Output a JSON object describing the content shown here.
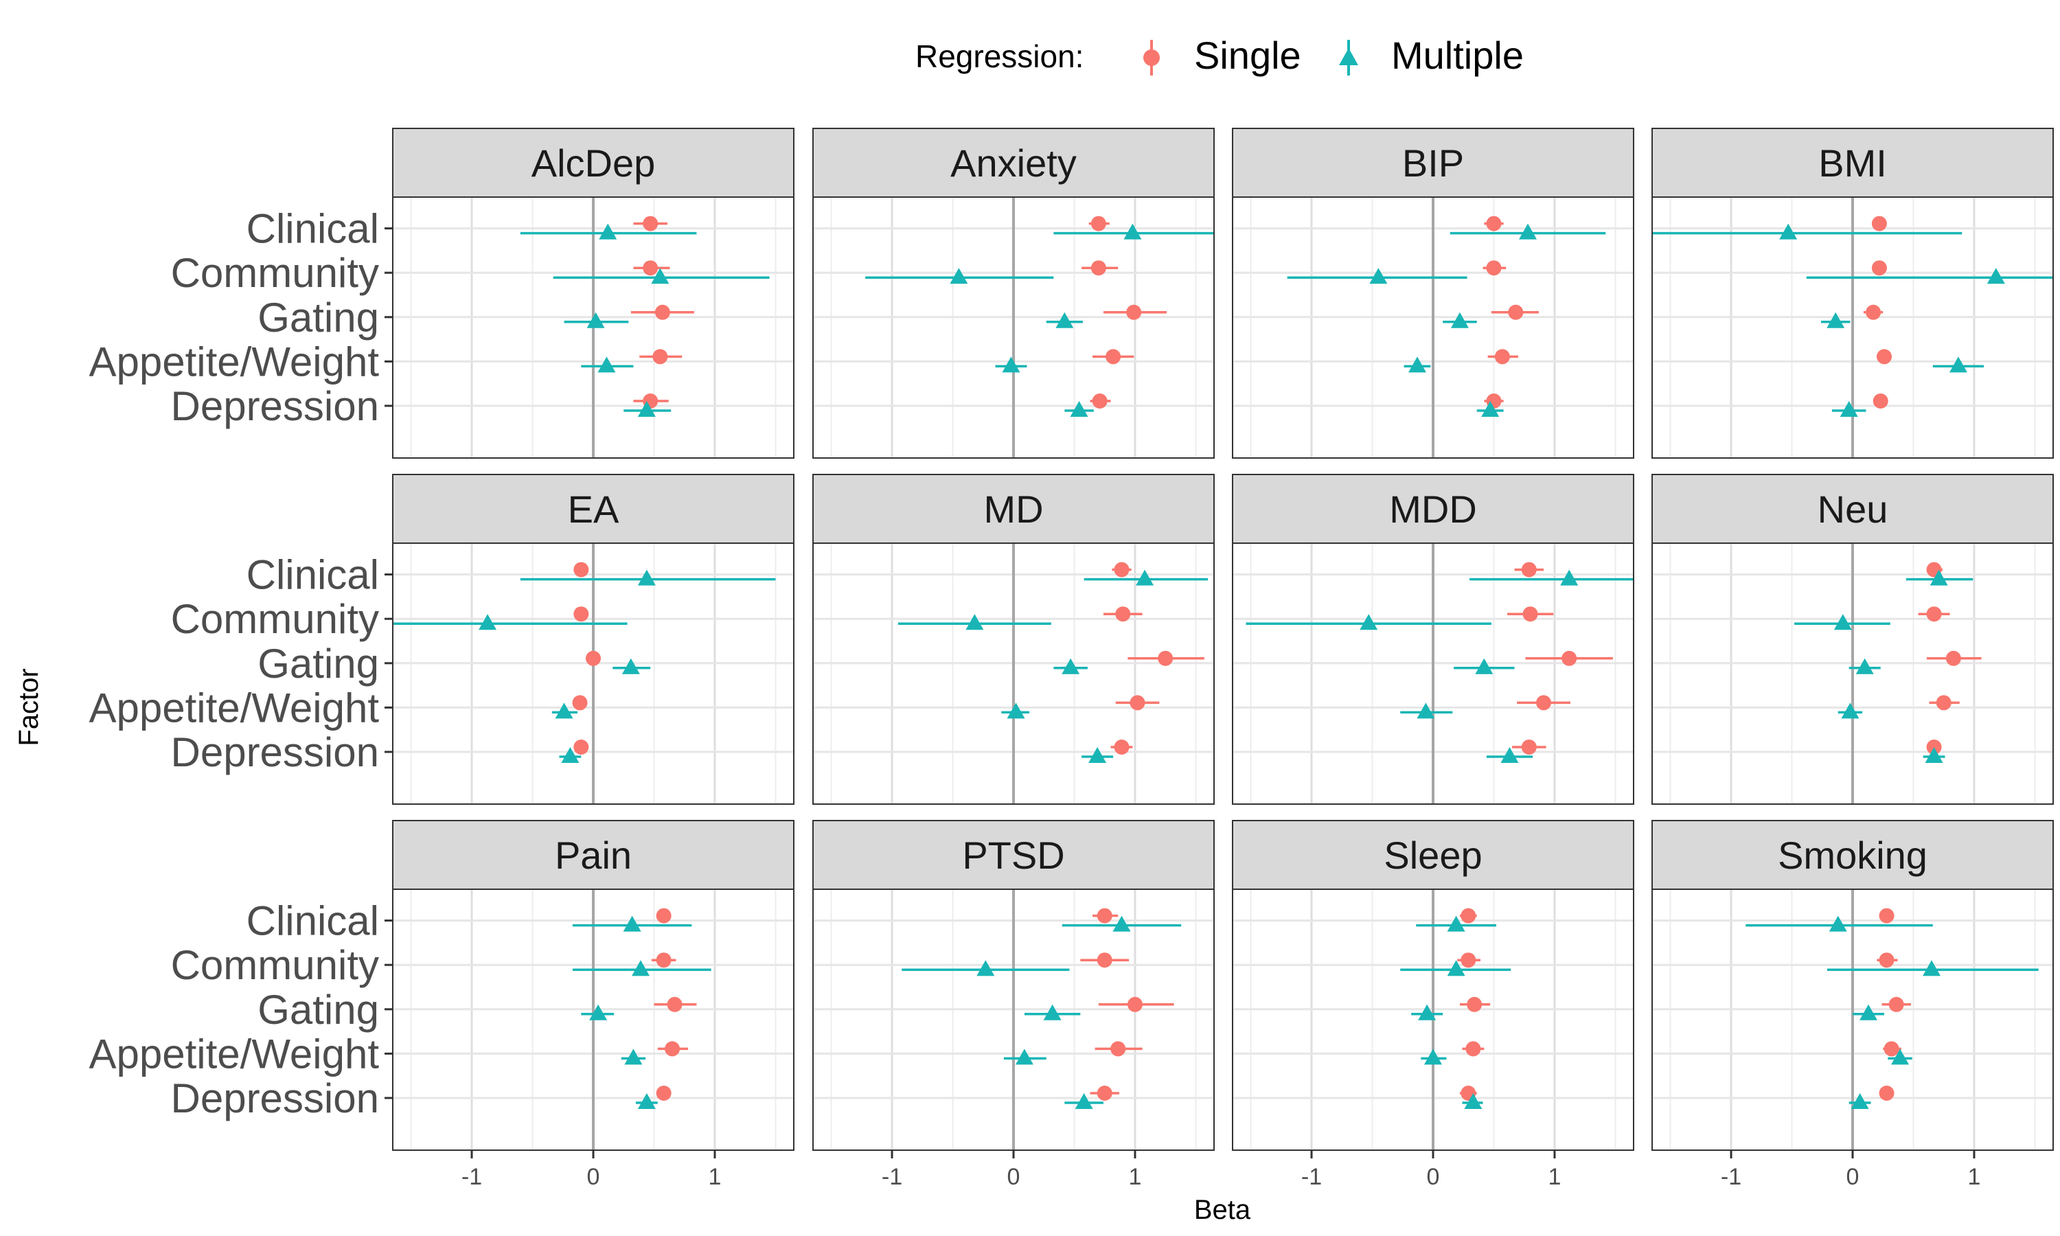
{
  "chart_data": {
    "type": "scatter",
    "subtype": "faceted-forest-plot",
    "xlabel": "Beta",
    "ylabel": "Factor",
    "xlim": [
      -1.65,
      1.65
    ],
    "xticks": [
      -1,
      0,
      1
    ],
    "xtick_labels": [
      "-1",
      "0",
      "1"
    ],
    "grid": true,
    "legend": {
      "title": "Regression:",
      "placement": "top",
      "entries": [
        {
          "name": "Single",
          "shape": "circle",
          "color": "#F8766D"
        },
        {
          "name": "Multiple",
          "shape": "triangle",
          "color": "#19B5B5"
        }
      ]
    },
    "factors": [
      "Clinical",
      "Community",
      "Gating",
      "Appetite/Weight",
      "Depression"
    ],
    "panels": [
      {
        "title": "AlcDep",
        "single": [
          {
            "beta": 0.47,
            "lo": 0.33,
            "hi": 0.61
          },
          {
            "beta": 0.47,
            "lo": 0.33,
            "hi": 0.63
          },
          {
            "beta": 0.57,
            "lo": 0.31,
            "hi": 0.83
          },
          {
            "beta": 0.55,
            "lo": 0.38,
            "hi": 0.73
          },
          {
            "beta": 0.47,
            "lo": 0.33,
            "hi": 0.62
          }
        ],
        "multiple": [
          {
            "beta": 0.12,
            "lo": -0.6,
            "hi": 0.85
          },
          {
            "beta": 0.55,
            "lo": -0.33,
            "hi": 1.45
          },
          {
            "beta": 0.02,
            "lo": -0.24,
            "hi": 0.29
          },
          {
            "beta": 0.11,
            "lo": -0.1,
            "hi": 0.33
          },
          {
            "beta": 0.44,
            "lo": 0.25,
            "hi": 0.64
          }
        ]
      },
      {
        "title": "Anxiety",
        "single": [
          {
            "beta": 0.7,
            "lo": 0.62,
            "hi": 0.79
          },
          {
            "beta": 0.7,
            "lo": 0.56,
            "hi": 0.86
          },
          {
            "beta": 0.99,
            "lo": 0.74,
            "hi": 1.26
          },
          {
            "beta": 0.82,
            "lo": 0.65,
            "hi": 0.99
          },
          {
            "beta": 0.71,
            "lo": 0.63,
            "hi": 0.8
          }
        ],
        "multiple": [
          {
            "beta": 0.98,
            "lo": 0.33,
            "hi": 1.65
          },
          {
            "beta": -0.45,
            "lo": -1.22,
            "hi": 0.33
          },
          {
            "beta": 0.42,
            "lo": 0.27,
            "hi": 0.57
          },
          {
            "beta": -0.02,
            "lo": -0.15,
            "hi": 0.11
          },
          {
            "beta": 0.54,
            "lo": 0.42,
            "hi": 0.66
          }
        ]
      },
      {
        "title": "BIP",
        "single": [
          {
            "beta": 0.5,
            "lo": 0.42,
            "hi": 0.58
          },
          {
            "beta": 0.5,
            "lo": 0.41,
            "hi": 0.6
          },
          {
            "beta": 0.68,
            "lo": 0.48,
            "hi": 0.87
          },
          {
            "beta": 0.57,
            "lo": 0.45,
            "hi": 0.7
          },
          {
            "beta": 0.5,
            "lo": 0.42,
            "hi": 0.58
          }
        ],
        "multiple": [
          {
            "beta": 0.78,
            "lo": 0.14,
            "hi": 1.42
          },
          {
            "beta": -0.45,
            "lo": -1.2,
            "hi": 0.28
          },
          {
            "beta": 0.22,
            "lo": 0.08,
            "hi": 0.36
          },
          {
            "beta": -0.13,
            "lo": -0.24,
            "hi": -0.02
          },
          {
            "beta": 0.47,
            "lo": 0.36,
            "hi": 0.58
          }
        ]
      },
      {
        "title": "BMI",
        "single": [
          {
            "beta": 0.22,
            "lo": 0.17,
            "hi": 0.27
          },
          {
            "beta": 0.22,
            "lo": 0.17,
            "hi": 0.27
          },
          {
            "beta": 0.17,
            "lo": 0.09,
            "hi": 0.25
          },
          {
            "beta": 0.26,
            "lo": 0.2,
            "hi": 0.32
          },
          {
            "beta": 0.23,
            "lo": 0.18,
            "hi": 0.28
          }
        ],
        "multiple": [
          {
            "beta": -0.53,
            "lo": -1.65,
            "hi": 0.9
          },
          {
            "beta": 1.18,
            "lo": -0.38,
            "hi": 1.65
          },
          {
            "beta": -0.14,
            "lo": -0.26,
            "hi": -0.02
          },
          {
            "beta": 0.87,
            "lo": 0.66,
            "hi": 1.08
          },
          {
            "beta": -0.03,
            "lo": -0.17,
            "hi": 0.11
          }
        ]
      },
      {
        "title": "EA",
        "single": [
          {
            "beta": -0.1,
            "lo": -0.15,
            "hi": -0.05
          },
          {
            "beta": -0.1,
            "lo": -0.15,
            "hi": -0.05
          },
          {
            "beta": 0.0,
            "lo": -0.06,
            "hi": 0.06
          },
          {
            "beta": -0.11,
            "lo": -0.16,
            "hi": -0.06
          },
          {
            "beta": -0.1,
            "lo": -0.15,
            "hi": -0.05
          }
        ],
        "multiple": [
          {
            "beta": 0.44,
            "lo": -0.6,
            "hi": 1.5
          },
          {
            "beta": -0.87,
            "lo": -1.65,
            "hi": 0.28
          },
          {
            "beta": 0.31,
            "lo": 0.16,
            "hi": 0.47
          },
          {
            "beta": -0.24,
            "lo": -0.34,
            "hi": -0.13
          },
          {
            "beta": -0.19,
            "lo": -0.28,
            "hi": -0.1
          }
        ]
      },
      {
        "title": "MD",
        "single": [
          {
            "beta": 0.89,
            "lo": 0.81,
            "hi": 0.97
          },
          {
            "beta": 0.9,
            "lo": 0.74,
            "hi": 1.06
          },
          {
            "beta": 1.25,
            "lo": 0.94,
            "hi": 1.57
          },
          {
            "beta": 1.02,
            "lo": 0.84,
            "hi": 1.2
          },
          {
            "beta": 0.89,
            "lo": 0.8,
            "hi": 0.98
          }
        ],
        "multiple": [
          {
            "beta": 1.08,
            "lo": 0.58,
            "hi": 1.6
          },
          {
            "beta": -0.32,
            "lo": -0.95,
            "hi": 0.31
          },
          {
            "beta": 0.47,
            "lo": 0.33,
            "hi": 0.61
          },
          {
            "beta": 0.02,
            "lo": -0.1,
            "hi": 0.13
          },
          {
            "beta": 0.69,
            "lo": 0.56,
            "hi": 0.82
          }
        ]
      },
      {
        "title": "MDD",
        "single": [
          {
            "beta": 0.79,
            "lo": 0.67,
            "hi": 0.91
          },
          {
            "beta": 0.8,
            "lo": 0.61,
            "hi": 0.99
          },
          {
            "beta": 1.12,
            "lo": 0.76,
            "hi": 1.48
          },
          {
            "beta": 0.91,
            "lo": 0.69,
            "hi": 1.13
          },
          {
            "beta": 0.79,
            "lo": 0.65,
            "hi": 0.93
          }
        ],
        "multiple": [
          {
            "beta": 1.12,
            "lo": 0.3,
            "hi": 1.65
          },
          {
            "beta": -0.53,
            "lo": -1.54,
            "hi": 0.48
          },
          {
            "beta": 0.42,
            "lo": 0.17,
            "hi": 0.67
          },
          {
            "beta": -0.06,
            "lo": -0.27,
            "hi": 0.16
          },
          {
            "beta": 0.63,
            "lo": 0.44,
            "hi": 0.82
          }
        ]
      },
      {
        "title": "Neu",
        "single": [
          {
            "beta": 0.67,
            "lo": 0.61,
            "hi": 0.74
          },
          {
            "beta": 0.67,
            "lo": 0.54,
            "hi": 0.8
          },
          {
            "beta": 0.83,
            "lo": 0.61,
            "hi": 1.06
          },
          {
            "beta": 0.75,
            "lo": 0.63,
            "hi": 0.88
          },
          {
            "beta": 0.67,
            "lo": 0.61,
            "hi": 0.73
          }
        ],
        "multiple": [
          {
            "beta": 0.71,
            "lo": 0.44,
            "hi": 0.99
          },
          {
            "beta": -0.08,
            "lo": -0.48,
            "hi": 0.31
          },
          {
            "beta": 0.1,
            "lo": -0.03,
            "hi": 0.23
          },
          {
            "beta": -0.02,
            "lo": -0.12,
            "hi": 0.08
          },
          {
            "beta": 0.67,
            "lo": 0.58,
            "hi": 0.76
          }
        ]
      },
      {
        "title": "Pain",
        "single": [
          {
            "beta": 0.58,
            "lo": 0.53,
            "hi": 0.63
          },
          {
            "beta": 0.58,
            "lo": 0.48,
            "hi": 0.68
          },
          {
            "beta": 0.67,
            "lo": 0.5,
            "hi": 0.85
          },
          {
            "beta": 0.65,
            "lo": 0.53,
            "hi": 0.78
          },
          {
            "beta": 0.58,
            "lo": 0.53,
            "hi": 0.63
          }
        ],
        "multiple": [
          {
            "beta": 0.32,
            "lo": -0.17,
            "hi": 0.81
          },
          {
            "beta": 0.39,
            "lo": -0.17,
            "hi": 0.97
          },
          {
            "beta": 0.04,
            "lo": -0.1,
            "hi": 0.17
          },
          {
            "beta": 0.33,
            "lo": 0.23,
            "hi": 0.43
          },
          {
            "beta": 0.44,
            "lo": 0.35,
            "hi": 0.53
          }
        ]
      },
      {
        "title": "PTSD",
        "single": [
          {
            "beta": 0.75,
            "lo": 0.65,
            "hi": 0.86
          },
          {
            "beta": 0.75,
            "lo": 0.55,
            "hi": 0.95
          },
          {
            "beta": 1.0,
            "lo": 0.7,
            "hi": 1.32
          },
          {
            "beta": 0.86,
            "lo": 0.67,
            "hi": 1.06
          },
          {
            "beta": 0.75,
            "lo": 0.63,
            "hi": 0.87
          }
        ],
        "multiple": [
          {
            "beta": 0.89,
            "lo": 0.4,
            "hi": 1.38
          },
          {
            "beta": -0.23,
            "lo": -0.92,
            "hi": 0.46
          },
          {
            "beta": 0.32,
            "lo": 0.09,
            "hi": 0.55
          },
          {
            "beta": 0.09,
            "lo": -0.08,
            "hi": 0.27
          },
          {
            "beta": 0.58,
            "lo": 0.42,
            "hi": 0.74
          }
        ]
      },
      {
        "title": "Sleep",
        "single": [
          {
            "beta": 0.29,
            "lo": 0.22,
            "hi": 0.36
          },
          {
            "beta": 0.29,
            "lo": 0.2,
            "hi": 0.39
          },
          {
            "beta": 0.34,
            "lo": 0.22,
            "hi": 0.47
          },
          {
            "beta": 0.33,
            "lo": 0.24,
            "hi": 0.42
          },
          {
            "beta": 0.29,
            "lo": 0.22,
            "hi": 0.36
          }
        ],
        "multiple": [
          {
            "beta": 0.19,
            "lo": -0.14,
            "hi": 0.52
          },
          {
            "beta": 0.19,
            "lo": -0.27,
            "hi": 0.64
          },
          {
            "beta": -0.05,
            "lo": -0.18,
            "hi": 0.08
          },
          {
            "beta": 0.0,
            "lo": -0.1,
            "hi": 0.11
          },
          {
            "beta": 0.33,
            "lo": 0.24,
            "hi": 0.41
          }
        ]
      },
      {
        "title": "Smoking",
        "single": [
          {
            "beta": 0.28,
            "lo": 0.23,
            "hi": 0.33
          },
          {
            "beta": 0.28,
            "lo": 0.2,
            "hi": 0.37
          },
          {
            "beta": 0.36,
            "lo": 0.24,
            "hi": 0.48
          },
          {
            "beta": 0.32,
            "lo": 0.25,
            "hi": 0.4
          },
          {
            "beta": 0.28,
            "lo": 0.23,
            "hi": 0.33
          }
        ],
        "multiple": [
          {
            "beta": -0.12,
            "lo": -0.88,
            "hi": 0.66
          },
          {
            "beta": 0.65,
            "lo": -0.21,
            "hi": 1.53
          },
          {
            "beta": 0.13,
            "lo": -0.0,
            "hi": 0.26
          },
          {
            "beta": 0.39,
            "lo": 0.29,
            "hi": 0.49
          },
          {
            "beta": 0.06,
            "lo": -0.03,
            "hi": 0.15
          }
        ]
      }
    ]
  }
}
